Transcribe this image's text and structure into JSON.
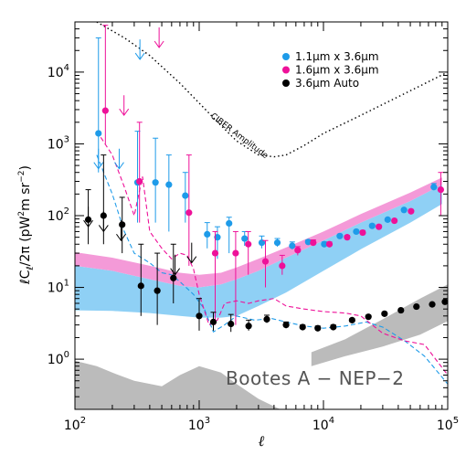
{
  "chart_data": {
    "type": "scatter",
    "title": "",
    "xlabel": "ℓ",
    "ylabel": "ℓC",
    "ylabel_sub": "ℓ",
    "ylabel_rest": "/2π   (pW",
    "ylabel_units": "m sr",
    "xscale": "log",
    "yscale": "log",
    "xlim": [
      100,
      100000
    ],
    "ylim": [
      0.2,
      50000
    ],
    "x_ticks": [
      {
        "value": 100,
        "base": "10",
        "exp": "2"
      },
      {
        "value": 1000,
        "base": "10",
        "exp": "3"
      },
      {
        "value": 10000,
        "base": "10",
        "exp": "4"
      },
      {
        "value": 100000,
        "base": "10",
        "exp": "5"
      }
    ],
    "y_ticks": [
      {
        "value": 1,
        "base": "10",
        "exp": "0"
      },
      {
        "value": 10,
        "base": "10",
        "exp": "1"
      },
      {
        "value": 100,
        "base": "10",
        "exp": "2"
      },
      {
        "value": 1000,
        "base": "10",
        "exp": "3"
      },
      {
        "value": 10000,
        "base": "10",
        "exp": "4"
      }
    ],
    "legend": {
      "placement": "top-right",
      "entries": [
        {
          "label": "1.1μm x 3.6μm",
          "color": "#1e9be9"
        },
        {
          "label": "1.6μm x 3.6μm",
          "color": "#ee1199"
        },
        {
          "label": "3.6μm Auto",
          "color": "#000000"
        }
      ]
    },
    "annotations": {
      "ciber_label": "CIBER Amplitude",
      "field_label": "Bootes A − NEP−2"
    },
    "series": [
      {
        "name": "1.1μm x 3.6μm",
        "color": "#1e9be9",
        "points": [
          {
            "x": 160,
            "y": 1400,
            "err_lo": 400,
            "err_hi": 30000
          },
          {
            "x": 330,
            "y": 290,
            "err_lo": 80,
            "err_hi": 1500
          },
          {
            "x": 460,
            "y": 290,
            "err_lo": 80,
            "err_hi": 1200
          },
          {
            "x": 590,
            "y": 270,
            "err_lo": 60,
            "err_hi": 700
          },
          {
            "x": 800,
            "y": 190,
            "err_lo": 80,
            "err_hi": 400
          },
          {
            "x": 1200,
            "y": 55,
            "err_lo": 35,
            "err_hi": 80
          },
          {
            "x": 1450,
            "y": 50,
            "err_lo": 25,
            "err_hi": 70
          },
          {
            "x": 1800,
            "y": 78,
            "err_lo": 30,
            "err_hi": 95
          },
          {
            "x": 2400,
            "y": 48,
            "err_lo": 38,
            "err_hi": 60
          },
          {
            "x": 3300,
            "y": 42,
            "err_lo": 35,
            "err_hi": 52
          },
          {
            "x": 4400,
            "y": 42,
            "err_lo": 37,
            "err_hi": 48
          },
          {
            "x": 5800,
            "y": 38,
            "err_lo": 34,
            "err_hi": 43
          },
          {
            "x": 7800,
            "y": 43,
            "err_lo": 40,
            "err_hi": 46
          },
          {
            "x": 10500,
            "y": 40,
            "err_lo": 38,
            "err_hi": 43
          },
          {
            "x": 14000,
            "y": 52,
            "err_lo": 50,
            "err_hi": 55
          },
          {
            "x": 19000,
            "y": 60,
            "err_lo": 57,
            "err_hi": 63
          },
          {
            "x": 25500,
            "y": 72,
            "err_lo": 69,
            "err_hi": 76
          },
          {
            "x": 34000,
            "y": 88,
            "err_lo": 85,
            "err_hi": 92
          },
          {
            "x": 46000,
            "y": 120,
            "err_lo": 115,
            "err_hi": 125
          },
          {
            "x": 80000,
            "y": 250,
            "err_lo": 230,
            "err_hi": 280
          }
        ],
        "upper_limits": [
          {
            "x": 160,
            "y": 450
          },
          {
            "x": 235,
            "y": 450
          },
          {
            "x": 345,
            "y": 15000
          }
        ]
      },
      {
        "name": "1.6μm x 3.6μm",
        "color": "#ee1199",
        "points": [
          {
            "x": 170,
            "y": 2900,
            "err_lo": 1000,
            "err_hi": 45000
          },
          {
            "x": 320,
            "y": 300,
            "err_lo": 80,
            "err_hi": 2000
          },
          {
            "x": 800,
            "y": 110,
            "err_lo": 20,
            "err_hi": 700
          },
          {
            "x": 1300,
            "y": 30,
            "err_lo": 3,
            "err_hi": 60
          },
          {
            "x": 1900,
            "y": 30,
            "err_lo": 3,
            "err_hi": 60
          },
          {
            "x": 2400,
            "y": 40,
            "err_lo": 15,
            "err_hi": 60
          },
          {
            "x": 3300,
            "y": 23,
            "err_lo": 10,
            "err_hi": 45
          },
          {
            "x": 4500,
            "y": 20,
            "err_lo": 15,
            "err_hi": 28
          },
          {
            "x": 6000,
            "y": 33,
            "err_lo": 28,
            "err_hi": 37
          },
          {
            "x": 8000,
            "y": 42,
            "err_lo": 39,
            "err_hi": 46
          },
          {
            "x": 10800,
            "y": 40,
            "err_lo": 37,
            "err_hi": 43
          },
          {
            "x": 15000,
            "y": 50,
            "err_lo": 47,
            "err_hi": 53
          },
          {
            "x": 20000,
            "y": 58,
            "err_lo": 55,
            "err_hi": 62
          },
          {
            "x": 27000,
            "y": 70,
            "err_lo": 67,
            "err_hi": 74
          },
          {
            "x": 36000,
            "y": 85,
            "err_lo": 82,
            "err_hi": 89
          },
          {
            "x": 49000,
            "y": 115,
            "err_lo": 110,
            "err_hi": 120
          },
          {
            "x": 85000,
            "y": 230,
            "err_lo": 100,
            "err_hi": 400
          }
        ],
        "upper_limits": [
          {
            "x": 240,
            "y": 2500
          },
          {
            "x": 460,
            "y": 22000
          }
        ]
      },
      {
        "name": "3.6μm Auto",
        "color": "#000000",
        "points": [
          {
            "x": 128,
            "y": 88,
            "err_lo": 40,
            "err_hi": 230
          },
          {
            "x": 170,
            "y": 100,
            "err_lo": 40,
            "err_hi": 700
          },
          {
            "x": 240,
            "y": 75,
            "err_lo": 30,
            "err_hi": 180
          },
          {
            "x": 340,
            "y": 10.5,
            "err_lo": 4,
            "err_hi": 40
          },
          {
            "x": 460,
            "y": 9,
            "err_lo": 3,
            "err_hi": 30
          },
          {
            "x": 620,
            "y": 13.5,
            "err_lo": 6,
            "err_hi": 40
          },
          {
            "x": 1000,
            "y": 4,
            "err_lo": 2.5,
            "err_hi": 7
          },
          {
            "x": 1300,
            "y": 3.3,
            "err_lo": 2.5,
            "err_hi": 4.5
          },
          {
            "x": 1800,
            "y": 3.1,
            "err_lo": 2.4,
            "err_hi": 4.2
          },
          {
            "x": 2500,
            "y": 2.9,
            "err_lo": 2.5,
            "err_hi": 3.5
          },
          {
            "x": 3500,
            "y": 3.6,
            "err_lo": 3.2,
            "err_hi": 4.1
          },
          {
            "x": 5000,
            "y": 3,
            "err_lo": 2.7,
            "err_hi": 3.3
          },
          {
            "x": 6800,
            "y": 2.8,
            "err_lo": 2.6,
            "err_hi": 3
          },
          {
            "x": 9000,
            "y": 2.7,
            "err_lo": 2.5,
            "err_hi": 2.9
          },
          {
            "x": 12000,
            "y": 2.8,
            "err_lo": 2.6,
            "err_hi": 3
          },
          {
            "x": 17000,
            "y": 3.5,
            "err_lo": 3.3,
            "err_hi": 3.7
          },
          {
            "x": 23000,
            "y": 3.9,
            "err_lo": 3.7,
            "err_hi": 4.1
          },
          {
            "x": 31000,
            "y": 4.3,
            "err_lo": 4.1,
            "err_hi": 4.5
          },
          {
            "x": 42000,
            "y": 4.8,
            "err_lo": 4.6,
            "err_hi": 5
          },
          {
            "x": 56000,
            "y": 5.4,
            "err_lo": 5.2,
            "err_hi": 5.6
          },
          {
            "x": 75000,
            "y": 5.8,
            "err_lo": 5.6,
            "err_hi": 6
          },
          {
            "x": 95000,
            "y": 6.3,
            "err_lo": 6.1,
            "err_hi": 6.5
          }
        ],
        "upper_limits": [
          {
            "x": 128,
            "y": 70
          },
          {
            "x": 170,
            "y": 60
          },
          {
            "x": 235,
            "y": 45
          },
          {
            "x": 640,
            "y": 15
          },
          {
            "x": 870,
            "y": 22
          }
        ]
      }
    ],
    "bands": {
      "blue": {
        "color": "#8fd0f5",
        "x": [
          100,
          200,
          400,
          700,
          1000,
          1500,
          2000,
          3000,
          5000,
          10000,
          20000,
          50000,
          90000
        ],
        "low": [
          4.8,
          4.7,
          4.4,
          4,
          3.8,
          3.8,
          4,
          5.5,
          8.5,
          17,
          34,
          80,
          145
        ],
        "high": [
          20,
          17,
          13,
          10.5,
          10,
          11,
          13,
          17,
          26,
          45,
          80,
          160,
          270
        ]
      },
      "pink": {
        "color": "#f49ad8",
        "x": [
          100,
          200,
          400,
          700,
          1000,
          1500,
          2000,
          3000,
          5000,
          10000,
          20000,
          50000,
          90000
        ],
        "low": [
          20,
          17,
          13,
          10.5,
          10,
          11,
          13,
          17,
          26,
          45,
          80,
          160,
          270
        ],
        "high": [
          31,
          26,
          20,
          16,
          15,
          16,
          19,
          25,
          36,
          60,
          105,
          210,
          340
        ]
      },
      "gray_lower": {
        "color": "#bbbbbb",
        "x": [
          100,
          150,
          200,
          300,
          500,
          700,
          1000,
          1500,
          2000,
          3000,
          4000,
          4500
        ],
        "low": [
          0.2,
          0.2,
          0.2,
          0.2,
          0.2,
          0.2,
          0.2,
          0.2,
          0.2,
          0.2,
          0.2,
          0.2
        ],
        "high": [
          0.95,
          0.8,
          0.65,
          0.5,
          0.42,
          0.6,
          0.8,
          0.65,
          0.45,
          0.28,
          0.22,
          0.2
        ]
      },
      "gray_right": {
        "color": "#bbbbbb",
        "x": [
          8000,
          15000,
          30000,
          60000,
          100000
        ],
        "low": [
          0.8,
          1.1,
          1.5,
          2.2,
          3.4
        ],
        "high": [
          1.25,
          1.9,
          3.6,
          7,
          11
        ]
      }
    },
    "lines": [
      {
        "name": "ciber",
        "color": "#000000",
        "style": "dotted",
        "x": [
          150,
          250,
          400,
          700,
          1000,
          1500,
          2000,
          3000,
          4000,
          5000,
          7000,
          10000,
          20000,
          50000,
          100000
        ],
        "y": [
          50000,
          30000,
          17000,
          7000,
          3700,
          1800,
          1100,
          700,
          660,
          700,
          950,
          1400,
          2500,
          5500,
          10000
        ]
      },
      {
        "name": "blue-dashed",
        "color": "#1e9be9",
        "style": "dashed",
        "x": [
          150,
          200,
          250,
          300,
          400,
          500,
          600,
          700,
          900,
          1100,
          1300,
          1600,
          2000,
          2800,
          3800,
          5000,
          7000,
          10000,
          15000,
          22000,
          30000,
          45000,
          65000,
          100000
        ],
        "y": [
          700,
          200,
          60,
          30,
          22,
          16,
          15,
          12,
          8,
          5,
          2.4,
          3,
          4,
          3.5,
          3.7,
          3.3,
          2.9,
          2.7,
          2.9,
          3.3,
          2.8,
          1.8,
          1.1,
          0.45
        ]
      },
      {
        "name": "pink-dashed",
        "color": "#ee1199",
        "style": "dashed",
        "x": [
          150,
          200,
          250,
          300,
          350,
          400,
          500,
          600,
          700,
          800,
          900,
          1000,
          1200,
          1400,
          1600,
          2000,
          2500,
          3000,
          4000,
          5000,
          7000,
          10000,
          15000,
          20000,
          30000,
          45000,
          65000,
          100000
        ],
        "y": [
          1500,
          700,
          250,
          100,
          350,
          60,
          35,
          25,
          30,
          28,
          18,
          8,
          3,
          3.5,
          6,
          6.5,
          6,
          6.5,
          7,
          5.5,
          5,
          4.6,
          4.4,
          4,
          2.3,
          1.8,
          1.6,
          0.6
        ]
      }
    ]
  }
}
